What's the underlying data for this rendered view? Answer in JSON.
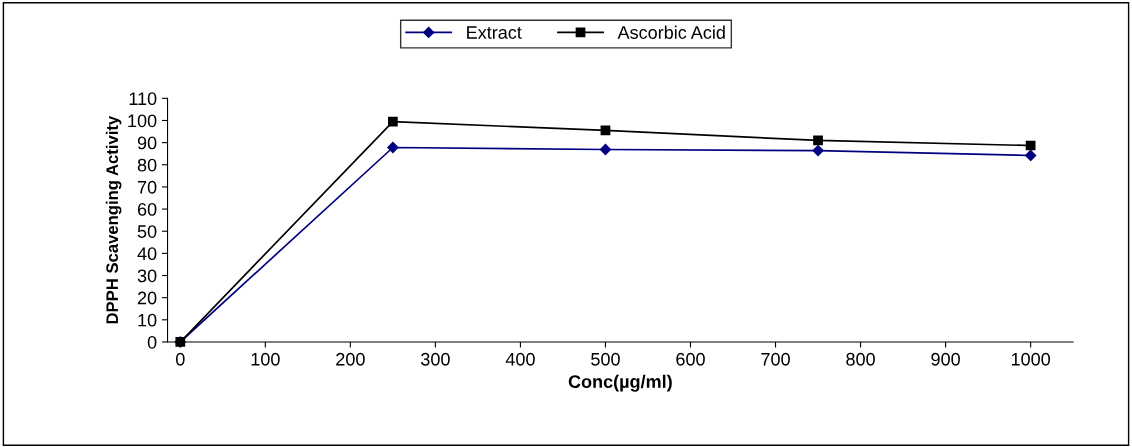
{
  "chart_data": {
    "type": "line",
    "xlabel": "Conc(µg/ml)",
    "ylabel": "DPPH Scavenging Activity",
    "x": [
      0,
      250,
      500,
      750,
      1000
    ],
    "series": [
      {
        "name": "Extract",
        "color": "#000080",
        "marker": "diamond",
        "values": [
          0,
          87.8,
          86.9,
          86.4,
          84.2
        ]
      },
      {
        "name": "Ascorbic Acid",
        "color": "#000000",
        "marker": "square",
        "values": [
          0,
          99.5,
          95.5,
          91,
          88.7
        ]
      }
    ],
    "xlim": [
      -15,
      1050
    ],
    "xticks": [
      0,
      100,
      200,
      300,
      400,
      500,
      600,
      700,
      800,
      900,
      1000
    ],
    "ylim": [
      0,
      110
    ],
    "yticks": [
      0,
      10,
      20,
      30,
      40,
      50,
      60,
      70,
      80,
      90,
      100,
      110
    ],
    "grid": false,
    "legend": "top"
  }
}
